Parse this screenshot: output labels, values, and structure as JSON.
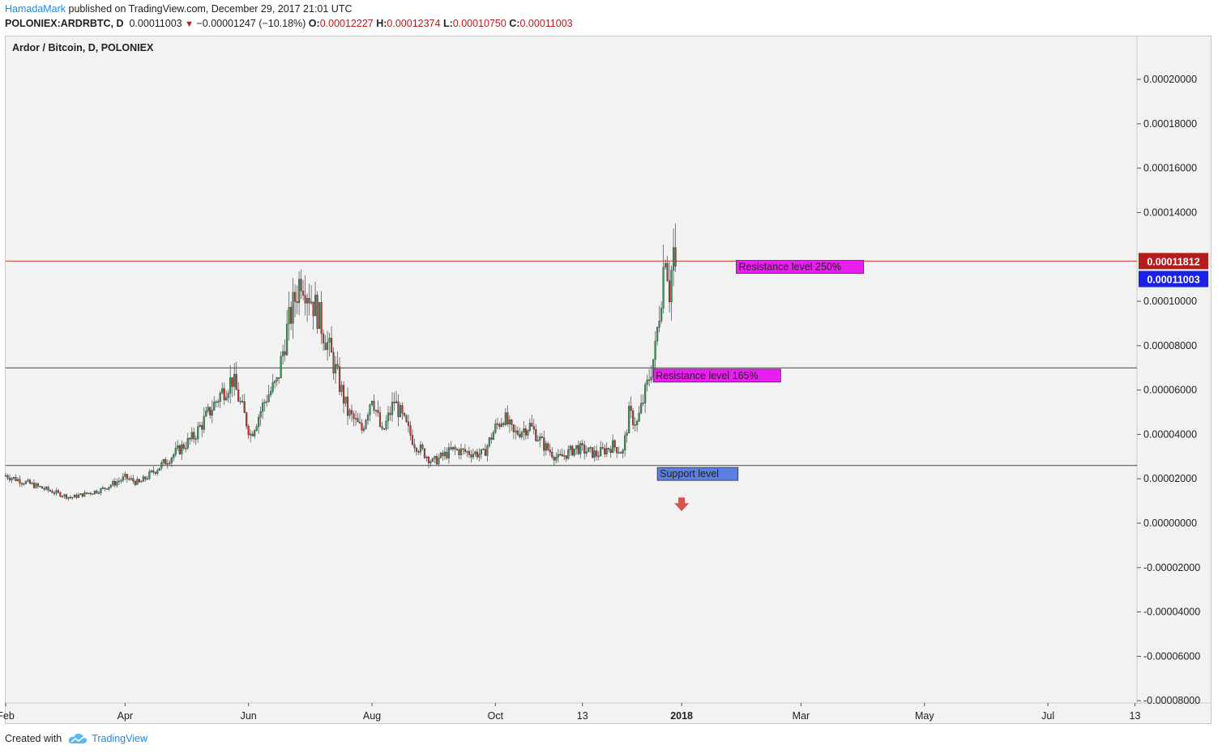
{
  "header": {
    "author": "HamadaMark",
    "published": "published on TradingView.com, December 29, 2017 21:01 UTC"
  },
  "symbol_bar": {
    "symbol": "POLONIEX:ARDRBTC, D",
    "last": "0.00011003",
    "change": "−0.00001247 (−10.18%)",
    "o_label": "O:",
    "o_value": "0.00012227",
    "h_label": "H:",
    "h_value": "0.00012374",
    "l_label": "L:",
    "l_value": "0.00010750",
    "c_label": "C:",
    "c_value": "0.00011003"
  },
  "chart_title": "Ardor / Bitcoin, D, POLONIEX",
  "footer": {
    "created_with": "Created with",
    "brand": "TradingView"
  },
  "colors": {
    "up": "#3a9a5c",
    "down": "#c0392b",
    "wick": "#5a5a5a",
    "resistance_line": "#c0392b",
    "level_line": "#444444",
    "label_magenta": "#e91ef0",
    "label_blue": "#5b7fe0",
    "price_badge_red": "#b71c1c",
    "price_badge_blue": "#1a22e8",
    "arrow": "#d9534f",
    "background": "#f2f2f2"
  },
  "chart_data": {
    "type": "candlestick",
    "title": "Ardor / Bitcoin, D, POLONIEX",
    "xlabel": "",
    "ylabel": "",
    "ylim": [
      -8e-05,
      0.00022
    ],
    "y_ticks": [
      "0.00020000",
      "0.00018000",
      "0.00016000",
      "0.00014000",
      "0.00010000",
      "0.00008000",
      "0.00006000",
      "0.00004000",
      "0.00002000",
      "0.00000000",
      "-0.00002000",
      "-0.00004000",
      "-0.00006000",
      "-0.00008000"
    ],
    "y_tick_values": [
      0.0002,
      0.00018,
      0.00016,
      0.00014,
      0.0001,
      8e-05,
      6e-05,
      4e-05,
      2e-05,
      0,
      -2e-05,
      -4e-05,
      -6e-05,
      -8e-05
    ],
    "x_range": [
      "2017-02-01",
      "2018-08-14"
    ],
    "x_ticks": [
      {
        "label": "Feb",
        "date": "2017-02-01",
        "bold": false
      },
      {
        "label": "Apr",
        "date": "2017-04-01",
        "bold": false
      },
      {
        "label": "Jun",
        "date": "2017-06-01",
        "bold": false
      },
      {
        "label": "Aug",
        "date": "2017-08-01",
        "bold": false
      },
      {
        "label": "Oct",
        "date": "2017-10-01",
        "bold": false
      },
      {
        "label": "13",
        "date": "2017-11-13",
        "bold": false
      },
      {
        "label": "2018",
        "date": "2018-01-01",
        "bold": true
      },
      {
        "label": "Mar",
        "date": "2018-03-01",
        "bold": false
      },
      {
        "label": "May",
        "date": "2018-05-01",
        "bold": false
      },
      {
        "label": "Jul",
        "date": "2018-07-01",
        "bold": false
      },
      {
        "label": "13",
        "date": "2018-08-13",
        "bold": false
      }
    ],
    "price_anchors": [
      {
        "date": "2017-02-01",
        "price": 2.15e-05
      },
      {
        "date": "2017-02-20",
        "price": 1.55e-05
      },
      {
        "date": "2017-03-05",
        "price": 1.15e-05
      },
      {
        "date": "2017-03-20",
        "price": 1.5e-05
      },
      {
        "date": "2017-04-01",
        "price": 2.05e-05
      },
      {
        "date": "2017-04-08",
        "price": 1.8e-05
      },
      {
        "date": "2017-04-20",
        "price": 2.7e-05
      },
      {
        "date": "2017-05-05",
        "price": 3.9e-05
      },
      {
        "date": "2017-05-18",
        "price": 5.8e-05
      },
      {
        "date": "2017-05-24",
        "price": 6.5e-05
      },
      {
        "date": "2017-06-02",
        "price": 4e-05
      },
      {
        "date": "2017-06-10",
        "price": 5.7e-05
      },
      {
        "date": "2017-06-15",
        "price": 6.3e-05
      },
      {
        "date": "2017-06-20",
        "price": 8.7e-05
      },
      {
        "date": "2017-06-27",
        "price": 0.000112
      },
      {
        "date": "2017-07-05",
        "price": 9.5e-05
      },
      {
        "date": "2017-07-12",
        "price": 7.5e-05
      },
      {
        "date": "2017-07-20",
        "price": 5e-05
      },
      {
        "date": "2017-07-27",
        "price": 4.2e-05
      },
      {
        "date": "2017-08-01",
        "price": 5.8e-05
      },
      {
        "date": "2017-08-06",
        "price": 4e-05
      },
      {
        "date": "2017-08-12",
        "price": 5.5e-05
      },
      {
        "date": "2017-08-22",
        "price": 3.6e-05
      },
      {
        "date": "2017-08-31",
        "price": 2.75e-05
      },
      {
        "date": "2017-09-10",
        "price": 3.3e-05
      },
      {
        "date": "2017-09-25",
        "price": 3.1e-05
      },
      {
        "date": "2017-10-01",
        "price": 4.3e-05
      },
      {
        "date": "2017-10-05",
        "price": 4.8e-05
      },
      {
        "date": "2017-10-10",
        "price": 4e-05
      },
      {
        "date": "2017-10-18",
        "price": 4.4e-05
      },
      {
        "date": "2017-10-25",
        "price": 3.5e-05
      },
      {
        "date": "2017-11-01",
        "price": 2.9e-05
      },
      {
        "date": "2017-11-10",
        "price": 3.4e-05
      },
      {
        "date": "2017-11-20",
        "price": 3.1e-05
      },
      {
        "date": "2017-11-28",
        "price": 3.5e-05
      },
      {
        "date": "2017-12-03",
        "price": 3.2e-05
      },
      {
        "date": "2017-12-06",
        "price": 4.9e-05
      },
      {
        "date": "2017-12-10",
        "price": 4.5e-05
      },
      {
        "date": "2017-12-15",
        "price": 6.2e-05
      },
      {
        "date": "2017-12-19",
        "price": 7.8e-05
      },
      {
        "date": "2017-12-22",
        "price": 0.000105
      },
      {
        "date": "2017-12-24",
        "price": 0.000125
      },
      {
        "date": "2017-12-26",
        "price": 0.000105
      },
      {
        "date": "2017-12-28",
        "price": 0.0001225
      },
      {
        "date": "2017-12-29",
        "price": 0.00011003
      }
    ],
    "horizontal_levels": [
      {
        "name": "Resistance level 250%",
        "value": 0.00011812,
        "price_label": "0.00011812",
        "style": "resistance"
      },
      {
        "name": "Resistance level 165%",
        "value": 7e-05,
        "style": "level"
      },
      {
        "name": "Support level",
        "value": 2.6e-05,
        "style": "level"
      }
    ],
    "last_price": {
      "value": 0.00011003,
      "label": "0.00011003"
    },
    "annotations": [
      {
        "text": "Resistance level 250%",
        "date": "2018-01-28",
        "value": 0.0001155,
        "color": "magenta"
      },
      {
        "text": "Resistance level 165%",
        "date": "2017-12-18",
        "value": 6.65e-05,
        "color": "magenta"
      },
      {
        "text": "Support level",
        "date": "2017-12-20",
        "value": 2.22e-05,
        "color": "blue"
      }
    ],
    "arrow": {
      "direction": "down",
      "date": "2018-01-01",
      "value": 8.3e-06
    },
    "grid": false
  }
}
